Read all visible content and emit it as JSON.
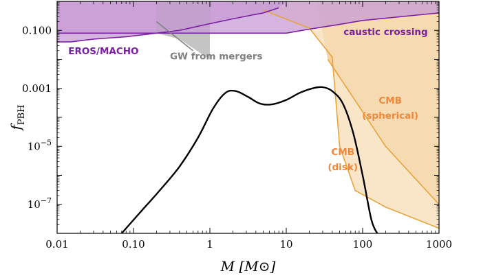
{
  "chart_data": {
    "type": "line",
    "x_scale": "log",
    "y_scale": "log",
    "xlim": [
      0.01,
      1000
    ],
    "ylim": [
      1e-08,
      1
    ],
    "xlabel": "M [M⊙]",
    "ylabel": "fPBH",
    "grid": false,
    "xticks": [
      {
        "value": 0.01,
        "label": "0.01"
      },
      {
        "value": 0.1,
        "label": "0.10"
      },
      {
        "value": 1,
        "label": "1"
      },
      {
        "value": 10,
        "label": "10"
      },
      {
        "value": 100,
        "label": "100"
      },
      {
        "value": 1000,
        "label": "1000"
      }
    ],
    "yticks": [
      {
        "value": 1e-07,
        "label": "10",
        "sup": "−7"
      },
      {
        "value": 1e-05,
        "label": "10",
        "sup": "−5"
      },
      {
        "value": 0.001,
        "label": "0.001",
        "sup": ""
      },
      {
        "value": 0.1,
        "label": "0.100",
        "sup": ""
      }
    ],
    "colors": {
      "eros": "#7b1fa2",
      "eros_fill": "#c79bd6",
      "gw": "#808080",
      "gw_fill": "#b0b0b0",
      "cmb_line": "#e8a33a",
      "cmb_disk_fill": "#f7dcb6",
      "cmb_sph_fill": "#f0c585",
      "caustic": "#7b1fa2",
      "pbh": "#000000",
      "cmb_text": "#f0883a"
    },
    "regions": [
      {
        "id": "cmb-spherical",
        "points": [
          [
            25,
            1
          ],
          [
            35,
            0.01
          ],
          [
            200,
            1e-05
          ],
          [
            1000,
            1e-07
          ],
          [
            1000,
            1
          ]
        ],
        "fill": "cmb_sph_fill",
        "stroke": "cmb_line"
      },
      {
        "id": "cmb-disk",
        "points": [
          [
            1.5,
            1
          ],
          [
            5,
            0.5
          ],
          [
            20,
            0.12
          ],
          [
            40,
            0.012
          ],
          [
            50,
            1e-05
          ],
          [
            80,
            3e-07
          ],
          [
            200,
            8e-08
          ],
          [
            1000,
            1.5e-08
          ],
          [
            1000,
            1
          ]
        ],
        "fill": "cmb_disk_fill",
        "stroke": "cmb_line"
      },
      {
        "id": "eros-macho",
        "points": [
          [
            0.01,
            1
          ],
          [
            0.01,
            0.04
          ],
          [
            0.015,
            0.04
          ],
          [
            0.03,
            0.05
          ],
          [
            0.08,
            0.06
          ],
          [
            0.2,
            0.08
          ],
          [
            0.4,
            0.1
          ],
          [
            0.8,
            0.15
          ],
          [
            2,
            0.25
          ],
          [
            5,
            0.4
          ],
          [
            8,
            0.6
          ],
          [
            10,
            1
          ]
        ],
        "fill": "eros_fill",
        "stroke": "eros"
      },
      {
        "id": "gw-mergers",
        "points": [
          [
            0.2,
            1
          ],
          [
            0.2,
            0.08
          ],
          [
            0.4,
            0.05
          ],
          [
            1,
            0.01
          ],
          [
            1,
            1
          ]
        ],
        "fill": "gw_fill",
        "stroke": "none"
      },
      {
        "id": "caustic-crossing",
        "points": [
          [
            0.01,
            1
          ],
          [
            0.01,
            0.08
          ],
          [
            10,
            0.08
          ],
          [
            20,
            0.11
          ],
          [
            50,
            0.16
          ],
          [
            100,
            0.22
          ],
          [
            1000,
            0.4
          ],
          [
            1000,
            1
          ]
        ],
        "fill": "eros_fill",
        "stroke": "caustic"
      }
    ],
    "series": [
      {
        "id": "pbh-mass-function",
        "color": "pbh",
        "x": [
          0.07,
          0.12,
          0.22,
          0.4,
          0.7,
          1.1,
          1.6,
          2.2,
          3.2,
          4.5,
          6.5,
          10,
          15,
          22,
          30,
          40,
          55,
          75,
          100,
          130,
          155
        ],
        "y": [
          1e-08,
          5e-08,
          3e-07,
          2e-06,
          2e-05,
          0.0002,
          0.0007,
          0.0008,
          0.0005,
          0.0003,
          0.00028,
          0.0004,
          0.0007,
          0.001,
          0.0011,
          0.0008,
          0.0003,
          3e-05,
          1e-06,
          3e-08,
          1e-08
        ]
      }
    ],
    "annotations": [
      {
        "text": "EROS/MACHO",
        "x": 0.014,
        "y": 0.015,
        "color": "eros",
        "anchor": "start"
      },
      {
        "text": "GW from mergers",
        "x": 0.3,
        "y": 0.01,
        "color": "gw",
        "anchor": "start"
      },
      {
        "text": "caustic crossing",
        "x": 200,
        "y": 0.07,
        "color": "caustic",
        "anchor": "middle"
      },
      {
        "text": "CMB",
        "x": 230,
        "y": 0.0003,
        "color": "cmb_text",
        "anchor": "middle"
      },
      {
        "text": "(spherical)",
        "x": 230,
        "y": 9e-05,
        "color": "cmb_text",
        "anchor": "middle"
      },
      {
        "text": "CMB",
        "x": 55,
        "y": 5e-06,
        "color": "cmb_text",
        "anchor": "middle"
      },
      {
        "text": "(disk)",
        "x": 55,
        "y": 1.5e-06,
        "color": "cmb_text",
        "anchor": "middle"
      }
    ],
    "pointer_lines": [
      {
        "id": "gw-pointer",
        "x1": 0.2,
        "y1": 0.2,
        "x2": 0.6,
        "y2": 0.02,
        "color": "gw"
      }
    ]
  }
}
